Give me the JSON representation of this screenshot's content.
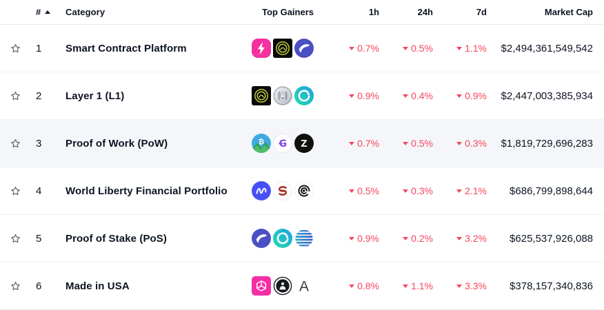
{
  "colors": {
    "down_red": "#f5455c",
    "text_primary": "#0c1421",
    "row_border": "#eff2f5",
    "row_highlight": "#f4f6f9",
    "star_gray": "#5d6570"
  },
  "header": {
    "rank": "#",
    "sort_icon": "sort-asc-icon",
    "category": "Category",
    "top_gainers": "Top Gainers",
    "h1": "1h",
    "h24": "24h",
    "d7": "7d",
    "market_cap": "Market Cap"
  },
  "rows": [
    {
      "rank": "1",
      "category": "Smart Contract Platform",
      "gainers": [
        "pink-lightning-token",
        "lime-rings-token",
        "indigo-swoosh-token"
      ],
      "changes": {
        "h1": "0.7%",
        "h24": "0.5%",
        "d7": "1.1%"
      },
      "direction": "down",
      "market_cap": "$2,494,361,549,542",
      "highlighted": false
    },
    {
      "rank": "2",
      "category": "Layer 1 (L1)",
      "gainers": [
        "lime-rings-token",
        "silver-face-token",
        "teal-c-token"
      ],
      "changes": {
        "h1": "0.9%",
        "h24": "0.4%",
        "d7": "0.9%"
      },
      "direction": "down",
      "market_cap": "$2,447,003,385,934",
      "highlighted": false
    },
    {
      "rank": "3",
      "category": "Proof of Work (PoW)",
      "gainers": [
        "blue-mountain-token",
        "purple-g-token",
        "black-z-token"
      ],
      "changes": {
        "h1": "0.7%",
        "h24": "0.5%",
        "d7": "0.3%"
      },
      "direction": "down",
      "market_cap": "$1,819,729,696,283",
      "highlighted": true
    },
    {
      "rank": "4",
      "category": "World Liberty Financial Portfolio",
      "gainers": [
        "blue-squiggle-token",
        "red-s-token",
        "black-spiral-token"
      ],
      "changes": {
        "h1": "0.5%",
        "h24": "0.3%",
        "d7": "2.1%"
      },
      "direction": "down",
      "market_cap": "$686,799,898,644",
      "highlighted": false
    },
    {
      "rank": "5",
      "category": "Proof of Stake (PoS)",
      "gainers": [
        "indigo-swoosh-token",
        "teal-c-token",
        "striped-globe-token"
      ],
      "changes": {
        "h1": "0.9%",
        "h24": "0.2%",
        "d7": "3.2%"
      },
      "direction": "down",
      "market_cap": "$625,537,926,088",
      "highlighted": false
    },
    {
      "rank": "6",
      "category": "Made in USA",
      "gainers": [
        "pink-cube-token",
        "black-person-token",
        "letter-a-token"
      ],
      "changes": {
        "h1": "0.8%",
        "h24": "1.1%",
        "d7": "3.3%"
      },
      "direction": "down",
      "market_cap": "$378,157,340,836",
      "highlighted": false
    }
  ]
}
